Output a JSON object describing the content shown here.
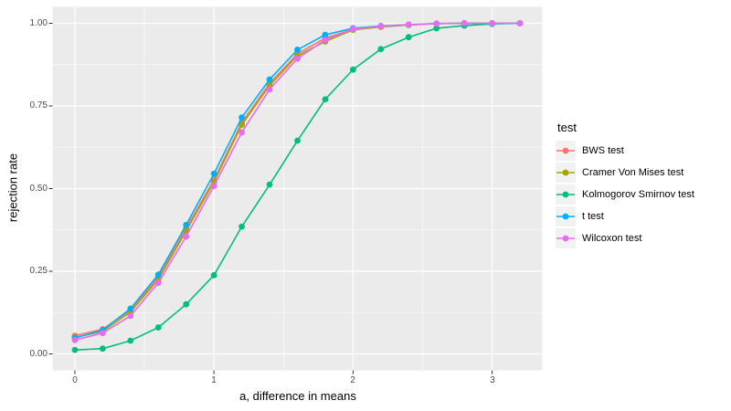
{
  "chart_data": {
    "type": "line",
    "title": "",
    "xlabel": "a, difference in means",
    "ylabel": "rejection rate",
    "x": [
      0,
      0.2,
      0.4,
      0.6,
      0.8,
      1.0,
      1.2,
      1.4,
      1.6,
      1.8,
      2.0,
      2.2,
      2.4,
      2.6,
      2.8,
      3.0,
      3.2
    ],
    "xlim": [
      -0.16,
      3.36
    ],
    "ylim": [
      -0.05,
      1.05
    ],
    "grid": "on",
    "x_major_ticks": [
      0,
      1,
      2,
      3
    ],
    "x_tick_labels": [
      "0",
      "1",
      "2",
      "3"
    ],
    "x_minor_ticks": [
      0.5,
      1.5,
      2.5
    ],
    "y_major_ticks": [
      0,
      0.25,
      0.5,
      0.75,
      1
    ],
    "y_tick_labels": [
      "0.00",
      "0.25",
      "0.50",
      "0.75",
      "1.00"
    ],
    "y_minor_ticks": [
      0.125,
      0.375,
      0.625,
      0.875
    ],
    "legend": {
      "title": "test",
      "position": "right"
    },
    "colors": {
      "panel_bg": "#EBEBEB",
      "grid_major": "#FFFFFF",
      "grid_minor": "#FFFFFF",
      "legend_key_bg": "#F2F2F2",
      "tick_label": "#4D4D4D",
      "tick_mark": "#333333",
      "axis_title": "#000000"
    },
    "series": [
      {
        "name": "BWS test",
        "color": "#F8766D",
        "values": [
          0.055,
          0.075,
          0.132,
          0.232,
          0.38,
          0.527,
          0.7,
          0.818,
          0.908,
          0.955,
          0.982,
          0.99,
          0.995,
          0.999,
          1.0,
          1.0,
          1.0
        ]
      },
      {
        "name": "Cramer Von Mises test",
        "color": "#A3A500",
        "values": [
          0.05,
          0.068,
          0.127,
          0.225,
          0.372,
          0.52,
          0.693,
          0.812,
          0.902,
          0.945,
          0.98,
          0.989,
          0.995,
          0.999,
          1.0,
          1.0,
          1.0
        ]
      },
      {
        "name": "Kolmogorov Smirnov test",
        "color": "#00BF7D",
        "values": [
          0.012,
          0.016,
          0.04,
          0.08,
          0.15,
          0.238,
          0.385,
          0.512,
          0.645,
          0.77,
          0.86,
          0.922,
          0.958,
          0.985,
          0.993,
          0.998,
          1.0
        ]
      },
      {
        "name": "t test",
        "color": "#00B0F6",
        "values": [
          0.048,
          0.072,
          0.137,
          0.24,
          0.39,
          0.545,
          0.715,
          0.83,
          0.92,
          0.965,
          0.985,
          0.992,
          0.996,
          0.999,
          1.0,
          1.0,
          1.0
        ]
      },
      {
        "name": "Wilcoxon test",
        "color": "#E76BF3",
        "values": [
          0.042,
          0.063,
          0.115,
          0.215,
          0.355,
          0.508,
          0.67,
          0.8,
          0.893,
          0.95,
          0.983,
          0.991,
          0.996,
          0.999,
          1.0,
          1.0,
          1.0
        ]
      }
    ]
  }
}
